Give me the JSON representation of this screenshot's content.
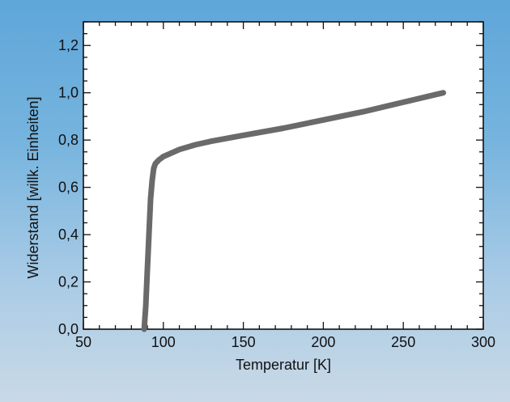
{
  "chart_data": {
    "type": "line",
    "title": "",
    "xlabel": "Temperatur [K]",
    "ylabel": "Widerstand [willk. Einheiten]",
    "xlim": [
      50,
      300
    ],
    "ylim": [
      0,
      1.3
    ],
    "xticks": [
      50,
      100,
      150,
      200,
      250,
      300
    ],
    "xtick_labels": [
      "50",
      "100",
      "150",
      "200",
      "250",
      "300"
    ],
    "yticks": [
      0,
      0.2,
      0.4,
      0.6,
      0.8,
      1.0,
      1.2
    ],
    "ytick_labels": [
      "0,0",
      "0,2",
      "0,4",
      "0,6",
      "0,8",
      "1,0",
      "1,2"
    ],
    "grid": false,
    "series": [
      {
        "color": "#6a6a6a",
        "x": [
          88,
          89,
          90,
          91,
          92,
          93,
          94,
          95,
          97,
          100,
          105,
          110,
          120,
          130,
          150,
          175,
          200,
          225,
          250,
          275
        ],
        "y": [
          0.0,
          0.1,
          0.25,
          0.4,
          0.55,
          0.63,
          0.68,
          0.7,
          0.715,
          0.73,
          0.745,
          0.76,
          0.78,
          0.795,
          0.82,
          0.85,
          0.885,
          0.92,
          0.96,
          1.0
        ]
      }
    ],
    "colors": {
      "plot_background": "#ffffff",
      "figure_background": "#6aaede",
      "line": "#6a6a6a"
    }
  }
}
